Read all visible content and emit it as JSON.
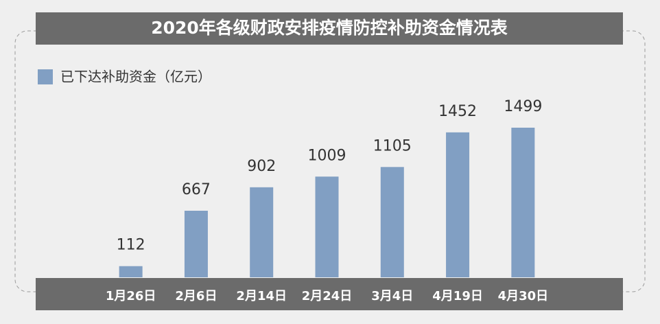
{
  "chart_data": {
    "type": "bar",
    "title": "2020年各级财政安排疫情防控补助资金情况表",
    "categories": [
      "1月26日",
      "2月6日",
      "2月14日",
      "2月24日",
      "3月4日",
      "4月19日",
      "4月30日"
    ],
    "series": [
      {
        "name": "已下达补助资金（亿元）",
        "color": "#819fc3",
        "values": [
          112,
          667,
          902,
          1009,
          1105,
          1452,
          1499
        ]
      }
    ]
  }
}
